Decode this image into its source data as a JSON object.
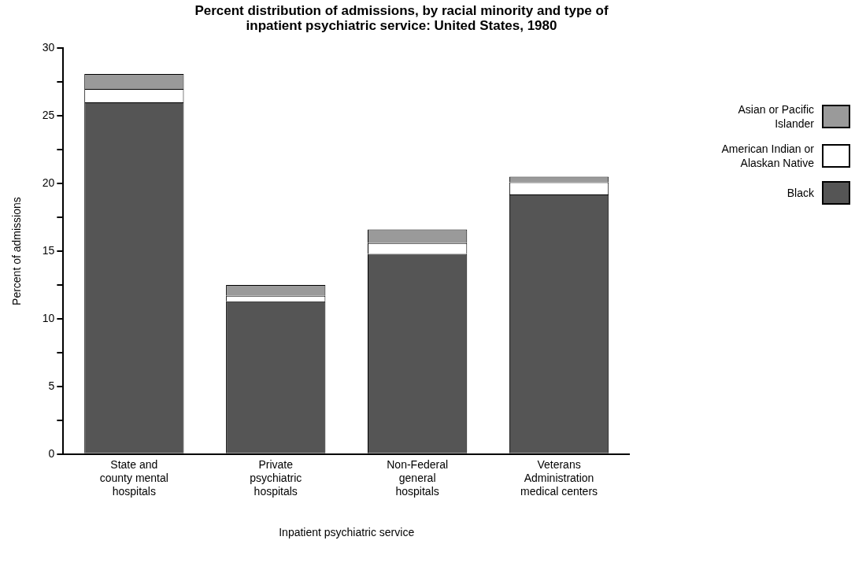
{
  "chart_data": {
    "type": "bar",
    "title": "Percent distribution of admissions, by racial minority and type of inpatient psychiatric service: United States, 1980",
    "xlabel": "Inpatient psychiatric service",
    "ylabel": "Percent of admissions",
    "categories": [
      "State and county mental hospitals",
      "Private psychiatric hospitals",
      "Non-Federal general hospitals",
      "Veterans Administration medical centers"
    ],
    "stacked": true,
    "legend": "right",
    "grid": false,
    "ylim": [
      0,
      30
    ],
    "yticks": [
      0,
      {
        "value": 2.5,
        "label": null
      },
      5,
      {
        "value": 7.5,
        "label": null
      },
      10,
      {
        "value": 12.5,
        "label": null
      },
      15,
      {
        "value": 17.5,
        "label": null
      },
      20,
      {
        "value": 22.5,
        "label": null
      },
      25,
      {
        "value": 27.5,
        "label": null
      },
      30
    ],
    "series": [
      {
        "name": "Black",
        "color": "#555555",
        "values": [
          26.0,
          11.3,
          14.8,
          19.2
        ]
      },
      {
        "name": "American Indian or Alaskan Native",
        "color": "#ffffff",
        "values": [
          1.0,
          0.4,
          0.8,
          0.9
        ]
      },
      {
        "name": "Asian or Pacific Islander",
        "color": "#9a9a9a",
        "values": [
          1.1,
          0.8,
          1.0,
          0.4
        ]
      }
    ]
  }
}
